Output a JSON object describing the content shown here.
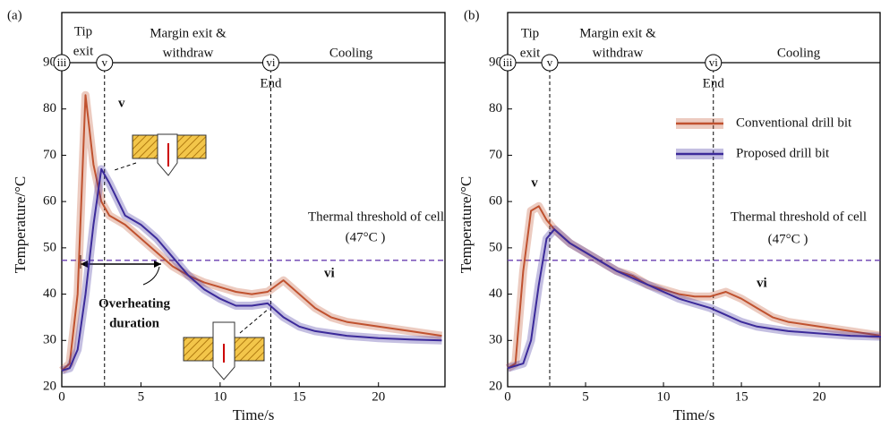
{
  "chart_data": [
    {
      "type": "line",
      "x_label": "Time/s",
      "y_label": "Temperature/°C",
      "x": [
        0,
        0.5,
        1,
        1.5,
        2,
        2.5,
        3,
        4,
        5,
        6,
        7,
        8,
        9,
        10,
        11,
        12,
        13,
        14,
        15,
        16,
        17,
        18,
        20,
        22,
        24
      ],
      "series": [
        {
          "name": "Conventional drill bit",
          "color": "#c0522f",
          "values": [
            23.5,
            25,
            40,
            83,
            68,
            60,
            57,
            55,
            52,
            49,
            46,
            44,
            42.5,
            41.5,
            40.5,
            40,
            40.5,
            43,
            40,
            37,
            35,
            34,
            33,
            32,
            31
          ]
        },
        {
          "name": "Proposed drill bit",
          "color": "#3b2a9a",
          "values": [
            23.5,
            24,
            28,
            40,
            55,
            67,
            64,
            57,
            55,
            52,
            48,
            44,
            41,
            39,
            37.5,
            37.5,
            38,
            35,
            33,
            32,
            31.5,
            31,
            30.5,
            30.2,
            30
          ]
        }
      ],
      "xlim": [
        0,
        24.2
      ],
      "ylim": [
        20,
        90
      ],
      "xticks": [
        0,
        5,
        10,
        15,
        20
      ],
      "yticks": [
        20,
        30,
        40,
        50,
        60,
        70,
        80,
        90
      ],
      "threshold": 47.3,
      "markers": [
        {
          "x": 0,
          "label": "iii"
        },
        {
          "x": 2.7,
          "label": "v"
        },
        {
          "x": 13.2,
          "label": "vi",
          "note": "End"
        }
      ],
      "annotations": [
        "(a)",
        "Tip",
        "exit",
        "Margin exit &",
        "withdraw",
        "Cooling",
        "Thermal threshold of cell",
        "(47°C )",
        "Overheating",
        "duration",
        "v",
        "vi"
      ],
      "legend": false
    },
    {
      "type": "line",
      "x_label": "Time/s",
      "y_label": "Temperature/°C",
      "x": [
        0,
        0.5,
        1,
        1.5,
        2,
        2.5,
        3,
        4,
        5,
        6,
        7,
        8,
        9,
        10,
        11,
        12,
        13,
        14,
        15,
        16,
        17,
        18,
        20,
        22,
        24
      ],
      "series": [
        {
          "name": "Conventional drill bit",
          "color": "#c0522f",
          "values": [
            24,
            25,
            45,
            58,
            59,
            56,
            54,
            51,
            49,
            47,
            45,
            44,
            42,
            41,
            40,
            39.5,
            39.5,
            40.5,
            39,
            37,
            35,
            34,
            33,
            32,
            31
          ]
        },
        {
          "name": "Proposed drill bit",
          "color": "#3b2a9a",
          "values": [
            24,
            24.5,
            25,
            30,
            42,
            52,
            54,
            51,
            49,
            47,
            45,
            43.5,
            42,
            40.5,
            39,
            38,
            37,
            35.5,
            34,
            33,
            32.5,
            32,
            31.5,
            31,
            30.8
          ]
        }
      ],
      "xlim": [
        0,
        23.9
      ],
      "ylim": [
        20,
        90
      ],
      "xticks": [
        0,
        5,
        10,
        15,
        20
      ],
      "yticks": [
        20,
        30,
        40,
        50,
        60,
        70,
        80,
        90
      ],
      "threshold": 47.3,
      "markers": [
        {
          "x": 0,
          "label": "iii"
        },
        {
          "x": 2.7,
          "label": "v"
        },
        {
          "x": 13.2,
          "label": "vi",
          "note": "End"
        }
      ],
      "annotations": [
        "(b)",
        "Tip",
        "exit",
        "Margin exit &",
        "withdraw",
        "Cooling",
        "Thermal threshold of cell",
        "(47°C )",
        "v",
        "vi"
      ],
      "legend": true
    }
  ]
}
